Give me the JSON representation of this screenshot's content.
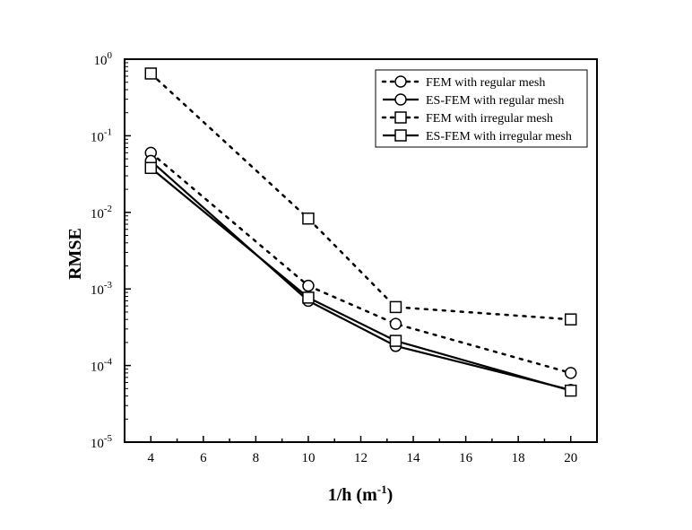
{
  "chart_data": {
    "type": "line",
    "xlabel": "1/h (m",
    "xlabel_sup": "-1",
    "xlabel_end": ")",
    "ylabel": "RMSE",
    "xlim": [
      3,
      21
    ],
    "ylim": [
      1e-05,
      1
    ],
    "yscale": "log",
    "x_ticks": [
      4,
      6,
      8,
      10,
      12,
      14,
      16,
      18,
      20
    ],
    "y_ticks": [
      {
        "base": "10",
        "exp": "0",
        "value": 1
      },
      {
        "base": "10",
        "exp": "-1",
        "value": 0.1
      },
      {
        "base": "10",
        "exp": "-2",
        "value": 0.01
      },
      {
        "base": "10",
        "exp": "-3",
        "value": 0.001
      },
      {
        "base": "10",
        "exp": "-4",
        "value": 0.0001
      },
      {
        "base": "10",
        "exp": "-5",
        "value": 1e-05
      }
    ],
    "legend_position": "top-right",
    "series": [
      {
        "name": "FEM with regular mesh",
        "marker": "circle",
        "line": "dotted",
        "x": [
          4,
          10,
          13.33,
          20
        ],
        "y": [
          0.06,
          0.0011,
          0.00035,
          8e-05
        ]
      },
      {
        "name": "ES-FEM  with regular mesh",
        "marker": "circle",
        "line": "solid",
        "x": [
          4,
          10,
          13.33,
          20
        ],
        "y": [
          0.047,
          0.0007,
          0.00018,
          4.8e-05
        ]
      },
      {
        "name": "FEM with irregular mesh",
        "marker": "square",
        "line": "dotted",
        "x": [
          4,
          10,
          13.33,
          20
        ],
        "y": [
          0.65,
          0.0083,
          0.00058,
          0.0004
        ]
      },
      {
        "name": "ES-FEM with irregular mesh",
        "marker": "square",
        "line": "solid",
        "x": [
          4,
          10,
          13.33,
          20
        ],
        "y": [
          0.038,
          0.00077,
          0.00021,
          4.7e-05
        ]
      }
    ]
  }
}
